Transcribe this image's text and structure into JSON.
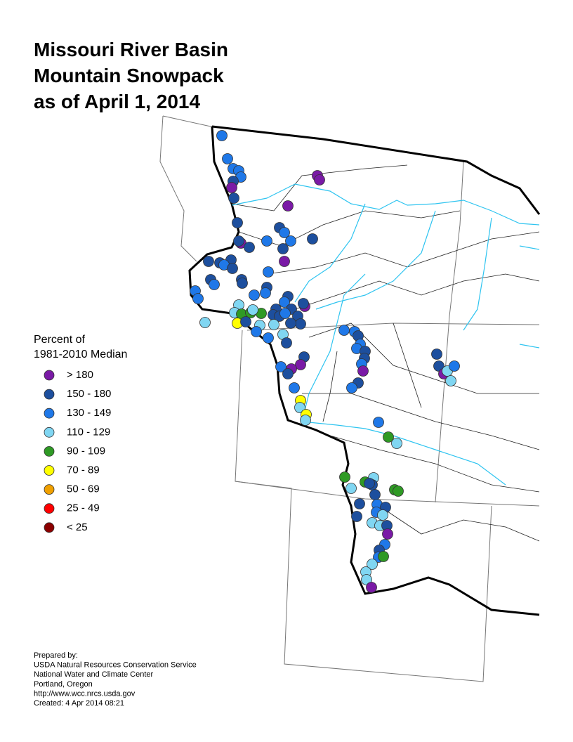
{
  "title": [
    "Missouri River Basin",
    "Mountain Snowpack",
    "as of April 1, 2014"
  ],
  "legend": {
    "title": [
      "Percent of",
      "1981-2010 Median"
    ],
    "items": [
      {
        "label": "> 180",
        "color": "#7a1aa6"
      },
      {
        "label": "150 - 180",
        "color": "#1d4f9e"
      },
      {
        "label": "130 - 149",
        "color": "#1f78e8"
      },
      {
        "label": "110 - 129",
        "color": "#80d6f2"
      },
      {
        "label": "90 - 109",
        "color": "#2f9a25"
      },
      {
        "label": "70 - 89",
        "color": "#ffff00"
      },
      {
        "label": "50 - 69",
        "color": "#f0a000"
      },
      {
        "label": "25 - 49",
        "color": "#ff0000"
      },
      {
        "label": "< 25",
        "color": "#8b0000"
      }
    ]
  },
  "footer": [
    "Prepared by:",
    "USDA Natural Resources Conservation Service",
    "National Water and Climate Center",
    "Portland, Oregon",
    "http://www.wcc.nrcs.usda.gov",
    "Created:   4 Apr 2014   08:21"
  ]
}
